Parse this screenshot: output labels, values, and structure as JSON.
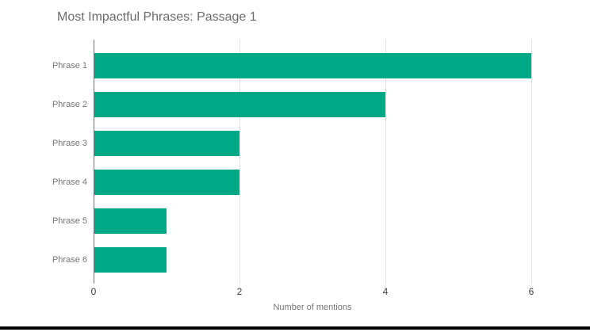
{
  "chart_data": {
    "type": "bar",
    "orientation": "horizontal",
    "title": "Most Impactful Phrases: Passage 1",
    "categories": [
      "Phrase 1",
      "Phrase 2",
      "Phrase 3",
      "Phrase 4",
      "Phrase 5",
      "Phrase 6"
    ],
    "values": [
      6,
      4,
      2,
      2,
      1,
      1
    ],
    "xlabel": "Number of mentions",
    "ylabel": "",
    "xlim": [
      0,
      6
    ],
    "xticks": [
      0,
      2,
      4,
      6
    ],
    "grid": true,
    "legend_position": "none"
  },
  "colors": {
    "bar": "#00a886",
    "gridline": "#e0e0e0",
    "axis_line": "#757575",
    "title_text": "#6b6b6b",
    "category_text": "#757575",
    "tick_text": "#404040",
    "axis_title_text": "#757575",
    "bottom_bar": "#000000",
    "background": "#ffffff"
  }
}
